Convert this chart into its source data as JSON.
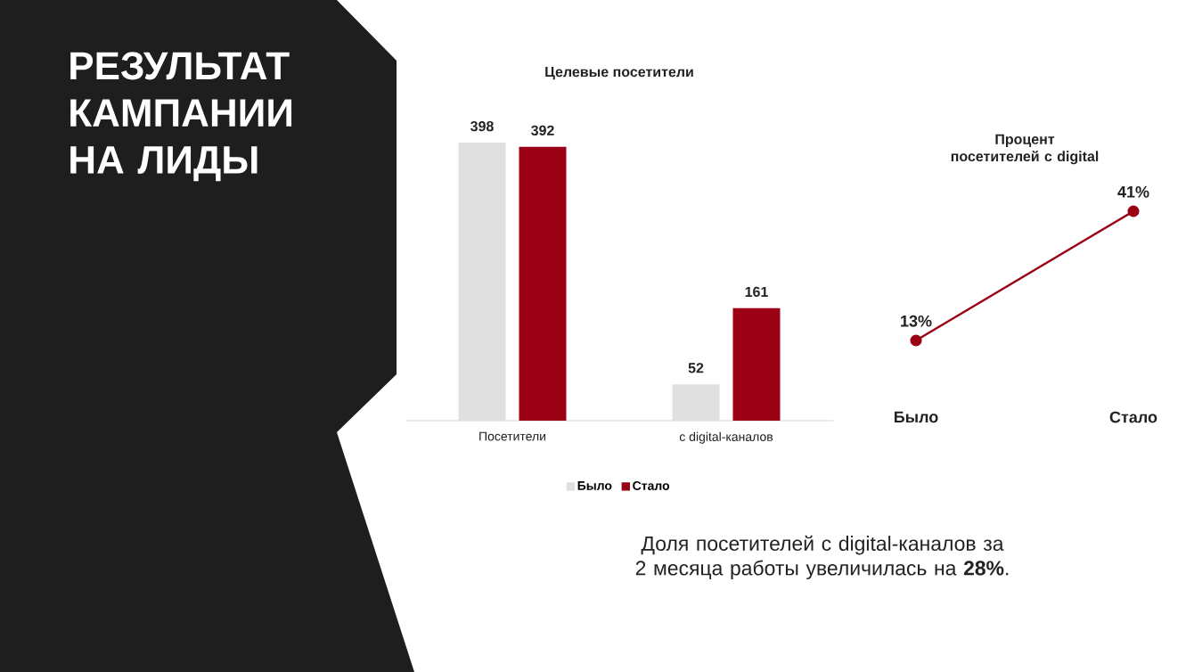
{
  "chart_data": [
    {
      "type": "bar",
      "title": "Целевые посетители",
      "categories": [
        "Посетители",
        "с digital-каналов"
      ],
      "series": [
        {
          "name": "Было",
          "color": "#e0e0e0",
          "values": [
            398,
            52
          ]
        },
        {
          "name": "Стало",
          "color": "#9b0014",
          "values": [
            392,
            161
          ]
        }
      ],
      "data_labels": true,
      "legend": "bottom",
      "tick_labels": "x",
      "annotations": [
        "РЕЗУЛЬТАТ КАМПАНИИ НА ЛИДЫ",
        "Доля посетителей с digital-каналов за 2 месяца работы увеличилась на **28%**."
      ]
    },
    {
      "type": "line",
      "title": "Процент посетителей с digital",
      "categories": [
        "Было",
        "Стало"
      ],
      "values": [
        13,
        41
      ],
      "value_labels": [
        "13%",
        "41%"
      ],
      "color": "#9b0014",
      "tick_labels": "x",
      "marker": "circle"
    }
  ]
}
